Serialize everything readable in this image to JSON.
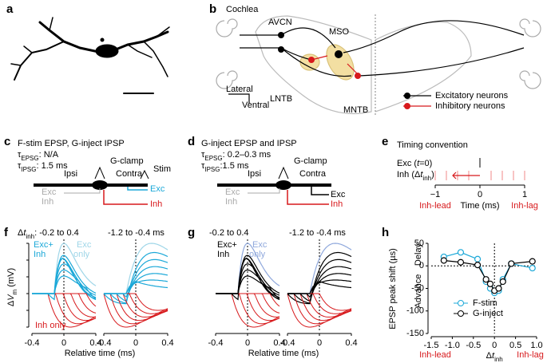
{
  "panels": {
    "a": {
      "label": "a"
    },
    "b": {
      "label": "b",
      "cochlea": "Cochlea",
      "avcn": "AVCN",
      "mso": "MSO",
      "lntb": "LNTB",
      "mntb": "MNTB",
      "lateral": "Lateral",
      "ventral": "Ventral",
      "legend": [
        "Excitatory neurons",
        "Inhibitory neurons"
      ]
    },
    "c": {
      "label": "c",
      "title": "F-stim EPSP, G-inject IPSP",
      "tau": [
        [
          {
            "t": "τ"
          },
          {
            "t": "EPSG",
            "sub": true
          },
          {
            "t": ": N/A"
          }
        ],
        [
          {
            "t": "τ"
          },
          {
            "t": "IPSG",
            "sub": true
          },
          {
            "t": ": 1.5 ms"
          }
        ]
      ],
      "gclamp": "G-clamp",
      "stim": "Stim",
      "ipsi": "Ipsi",
      "contra": "Contra",
      "left": [
        "Exc",
        "Inh"
      ],
      "right": [
        "Exc",
        "Inh"
      ]
    },
    "d": {
      "label": "d",
      "title": "G-inject EPSP and IPSP",
      "tau": [
        [
          {
            "t": "τ"
          },
          {
            "t": "EPSG",
            "sub": true
          },
          {
            "t": ": 0.2–0.3 ms"
          }
        ],
        [
          {
            "t": "τ"
          },
          {
            "t": "IPSG",
            "sub": true
          },
          {
            "t": ":1.5 ms"
          }
        ]
      ],
      "gclamp": "G-clamp",
      "ipsi": "Ipsi",
      "contra": "Contra",
      "left": [
        "Exc",
        "Inh"
      ],
      "right": [
        "Exc",
        "Inh"
      ]
    },
    "e": {
      "label": "e",
      "title": "Timing convention",
      "exc": [
        {
          "t": "Exc ("
        },
        {
          "t": "t",
          "i": true
        },
        {
          "t": "=0)"
        }
      ],
      "inh": [
        {
          "t": "Inh (Δ"
        },
        {
          "t": "t",
          "i": true
        },
        {
          "t": "inh",
          "sub": true
        },
        {
          "t": ")"
        }
      ],
      "ticks": [
        "−1",
        "0",
        "1"
      ],
      "xlabel": "Time (ms)",
      "lead": "Inh-lead",
      "lag": "Inh-lag"
    },
    "f": {
      "label": "f",
      "dt": [
        {
          "t": "Δ"
        },
        {
          "t": "t",
          "i": true
        },
        {
          "t": "inh",
          "sub": true
        },
        {
          "t": ": -0.2 to 0.4"
        }
      ],
      "range2": "-1.2 to -0.4 ms",
      "ylabel": [
        {
          "t": "Δ"
        },
        {
          "t": "V",
          "i": true
        },
        {
          "t": "m",
          "sub": true
        },
        {
          "t": " (mV)"
        }
      ],
      "xticks": [
        "-0.4",
        "0",
        "0.4"
      ],
      "xlabel": "Relative time (ms)",
      "excinh": [
        "Exc+",
        "Inh"
      ],
      "exconly": [
        "Exc",
        "only"
      ],
      "inhonly": "Inh only"
    },
    "g": {
      "label": "g",
      "range1": "-0.2 to 0.4",
      "range2": "-1.2 to -0.4 ms",
      "xticks": [
        "-0.4",
        "0",
        "0.4"
      ],
      "xlabel": "Relative time (ms)",
      "excinh": [
        "Exc+",
        "Inh"
      ],
      "exconly": [
        "Exc",
        "only"
      ]
    },
    "h": {
      "label": "h"
    }
  },
  "chart_data": {
    "type": "line",
    "ylabel": "EPSP peak shift (µs)",
    "xlabel": [
      {
        "t": "Δ"
      },
      {
        "t": "t",
        "i": true
      },
      {
        "t": "inh",
        "sub": true
      }
    ],
    "annotations": {
      "delay": "Delay",
      "advance": "Advance",
      "lead": "Inh-lead",
      "lag": "Inh-lag"
    },
    "x": [
      -1.2,
      -0.8,
      -0.4,
      -0.2,
      -0.1,
      0,
      0.1,
      0.2,
      0.4,
      0.9
    ],
    "series": [
      {
        "name": "F-stim",
        "color": "#1ba8d8",
        "values": [
          20,
          30,
          15,
          -35,
          -50,
          -60,
          -55,
          -30,
          5,
          -5
        ]
      },
      {
        "name": "G-inject",
        "color": "#000000",
        "values": [
          12,
          8,
          2,
          -30,
          -40,
          -55,
          -50,
          -35,
          5,
          10
        ]
      }
    ],
    "xlim": [
      -1.5,
      1.0
    ],
    "xticks": [
      -1.5,
      {
        "value": -1.0,
        "label": "-1.0"
      },
      -0.5,
      0,
      0.5,
      {
        "value": 1.0,
        "label": "1.0"
      }
    ],
    "ylim": [
      -150,
      50
    ],
    "yticks": [
      -150,
      -100,
      -50,
      0,
      50
    ]
  }
}
